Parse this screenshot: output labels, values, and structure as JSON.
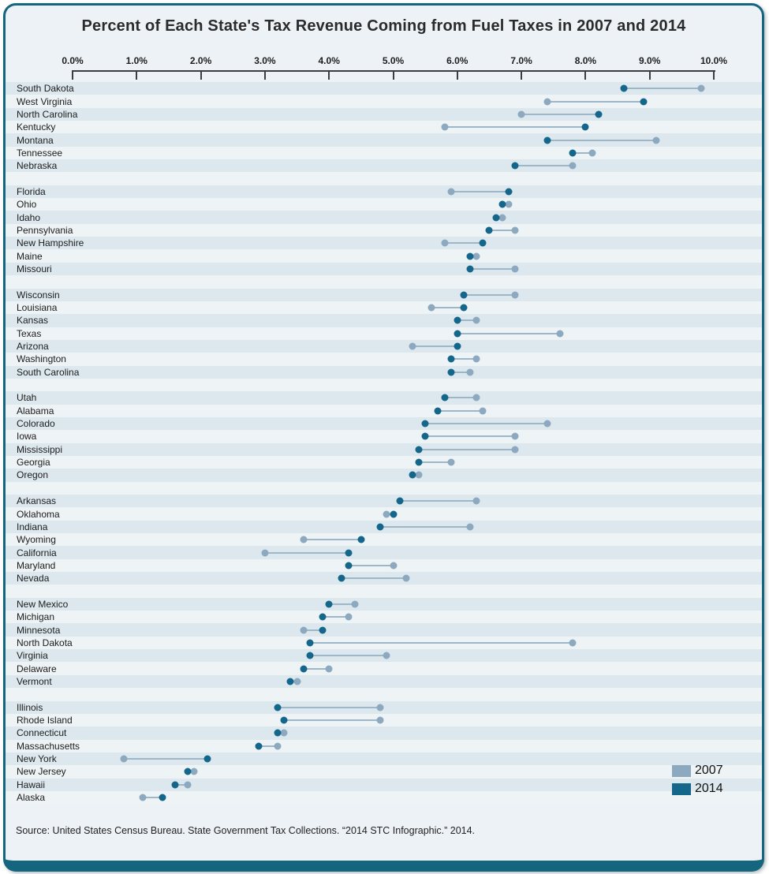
{
  "source_note": "Source: United States Census Bureau. State Government Tax Collections. “2014 STC Infographic.” 2014.",
  "colors": {
    "card_border": "#15657E",
    "background": "#EDF2F6",
    "stripe_dark": "#DCE8EE",
    "stripe_light": "#EEF3F6",
    "connector": "#9DB6C8",
    "series_2007": "#8CA9BF",
    "series_2014": "#14678A"
  },
  "chart_data": {
    "type": "dumbbell",
    "title": "Percent of Each State's Tax Revenue Coming from Fuel Taxes in 2007 and 2014",
    "x_axis": {
      "min": 0,
      "max": 10,
      "tick_step": 1,
      "unit": "%",
      "tick_labels": [
        "0.0%",
        "1.0%",
        "2.0%",
        "3.0%",
        "4.0%",
        "5.0%",
        "6.0%",
        "7.0%",
        "8.0%",
        "9.0%",
        "10.0%"
      ]
    },
    "grid": false,
    "legend": {
      "position": "bottom-right",
      "entries": [
        {
          "label": "2007",
          "color": "#8CA9BF"
        },
        {
          "label": "2014",
          "color": "#14678A"
        }
      ]
    },
    "groups": [
      {
        "rows": [
          {
            "state": "South Dakota",
            "pct_2007": 9.8,
            "pct_2014": 8.6
          },
          {
            "state": "West Virginia",
            "pct_2007": 7.4,
            "pct_2014": 8.9
          },
          {
            "state": "North Carolina",
            "pct_2007": 7.0,
            "pct_2014": 8.2
          },
          {
            "state": "Kentucky",
            "pct_2007": 5.8,
            "pct_2014": 8.0
          },
          {
            "state": "Montana",
            "pct_2007": 9.1,
            "pct_2014": 7.4
          },
          {
            "state": "Tennessee",
            "pct_2007": 8.1,
            "pct_2014": 7.8
          },
          {
            "state": "Nebraska",
            "pct_2007": 7.8,
            "pct_2014": 6.9
          }
        ]
      },
      {
        "rows": [
          {
            "state": "Florida",
            "pct_2007": 5.9,
            "pct_2014": 6.8
          },
          {
            "state": "Ohio",
            "pct_2007": 6.8,
            "pct_2014": 6.7
          },
          {
            "state": "Idaho",
            "pct_2007": 6.7,
            "pct_2014": 6.6
          },
          {
            "state": "Pennsylvania",
            "pct_2007": 6.9,
            "pct_2014": 6.5
          },
          {
            "state": "New Hampshire",
            "pct_2007": 5.8,
            "pct_2014": 6.4
          },
          {
            "state": "Maine",
            "pct_2007": 6.3,
            "pct_2014": 6.2
          },
          {
            "state": "Missouri",
            "pct_2007": 6.9,
            "pct_2014": 6.2
          }
        ]
      },
      {
        "rows": [
          {
            "state": "Wisconsin",
            "pct_2007": 6.9,
            "pct_2014": 6.1
          },
          {
            "state": "Louisiana",
            "pct_2007": 5.6,
            "pct_2014": 6.1
          },
          {
            "state": "Kansas",
            "pct_2007": 6.3,
            "pct_2014": 6.0
          },
          {
            "state": "Texas",
            "pct_2007": 7.6,
            "pct_2014": 6.0
          },
          {
            "state": "Arizona",
            "pct_2007": 5.3,
            "pct_2014": 6.0
          },
          {
            "state": "Washington",
            "pct_2007": 6.3,
            "pct_2014": 5.9
          },
          {
            "state": "South Carolina",
            "pct_2007": 6.2,
            "pct_2014": 5.9
          }
        ]
      },
      {
        "rows": [
          {
            "state": "Utah",
            "pct_2007": 6.3,
            "pct_2014": 5.8
          },
          {
            "state": "Alabama",
            "pct_2007": 6.4,
            "pct_2014": 5.7
          },
          {
            "state": "Colorado",
            "pct_2007": 7.4,
            "pct_2014": 5.5
          },
          {
            "state": "Iowa",
            "pct_2007": 6.9,
            "pct_2014": 5.5
          },
          {
            "state": "Mississippi",
            "pct_2007": 6.9,
            "pct_2014": 5.4
          },
          {
            "state": "Georgia",
            "pct_2007": 5.9,
            "pct_2014": 5.4
          },
          {
            "state": "Oregon",
            "pct_2007": 5.4,
            "pct_2014": 5.3
          }
        ]
      },
      {
        "rows": [
          {
            "state": "Arkansas",
            "pct_2007": 6.3,
            "pct_2014": 5.1
          },
          {
            "state": "Oklahoma",
            "pct_2007": 4.9,
            "pct_2014": 5.0
          },
          {
            "state": "Indiana",
            "pct_2007": 6.2,
            "pct_2014": 4.8
          },
          {
            "state": "Wyoming",
            "pct_2007": 3.6,
            "pct_2014": 4.5
          },
          {
            "state": "California",
            "pct_2007": 3.0,
            "pct_2014": 4.3
          },
          {
            "state": "Maryland",
            "pct_2007": 5.0,
            "pct_2014": 4.3
          },
          {
            "state": "Nevada",
            "pct_2007": 5.2,
            "pct_2014": 4.2
          }
        ]
      },
      {
        "rows": [
          {
            "state": "New Mexico",
            "pct_2007": 4.4,
            "pct_2014": 4.0
          },
          {
            "state": "Michigan",
            "pct_2007": 4.3,
            "pct_2014": 3.9
          },
          {
            "state": "Minnesota",
            "pct_2007": 3.6,
            "pct_2014": 3.9
          },
          {
            "state": "North Dakota",
            "pct_2007": 7.8,
            "pct_2014": 3.7
          },
          {
            "state": "Virginia",
            "pct_2007": 4.9,
            "pct_2014": 3.7
          },
          {
            "state": "Delaware",
            "pct_2007": 4.0,
            "pct_2014": 3.6
          },
          {
            "state": "Vermont",
            "pct_2007": 3.5,
            "pct_2014": 3.4
          }
        ]
      },
      {
        "rows": [
          {
            "state": "Illinois",
            "pct_2007": 4.8,
            "pct_2014": 3.2
          },
          {
            "state": "Rhode Island",
            "pct_2007": 4.8,
            "pct_2014": 3.3
          },
          {
            "state": "Connecticut",
            "pct_2007": 3.3,
            "pct_2014": 3.2
          },
          {
            "state": "Massachusetts",
            "pct_2007": 3.2,
            "pct_2014": 2.9
          },
          {
            "state": "New York",
            "pct_2007": 0.8,
            "pct_2014": 2.1
          },
          {
            "state": "New Jersey",
            "pct_2007": 1.9,
            "pct_2014": 1.8
          },
          {
            "state": "Hawaii",
            "pct_2007": 1.8,
            "pct_2014": 1.6
          },
          {
            "state": "Alaska",
            "pct_2007": 1.1,
            "pct_2014": 1.4
          }
        ]
      }
    ]
  }
}
